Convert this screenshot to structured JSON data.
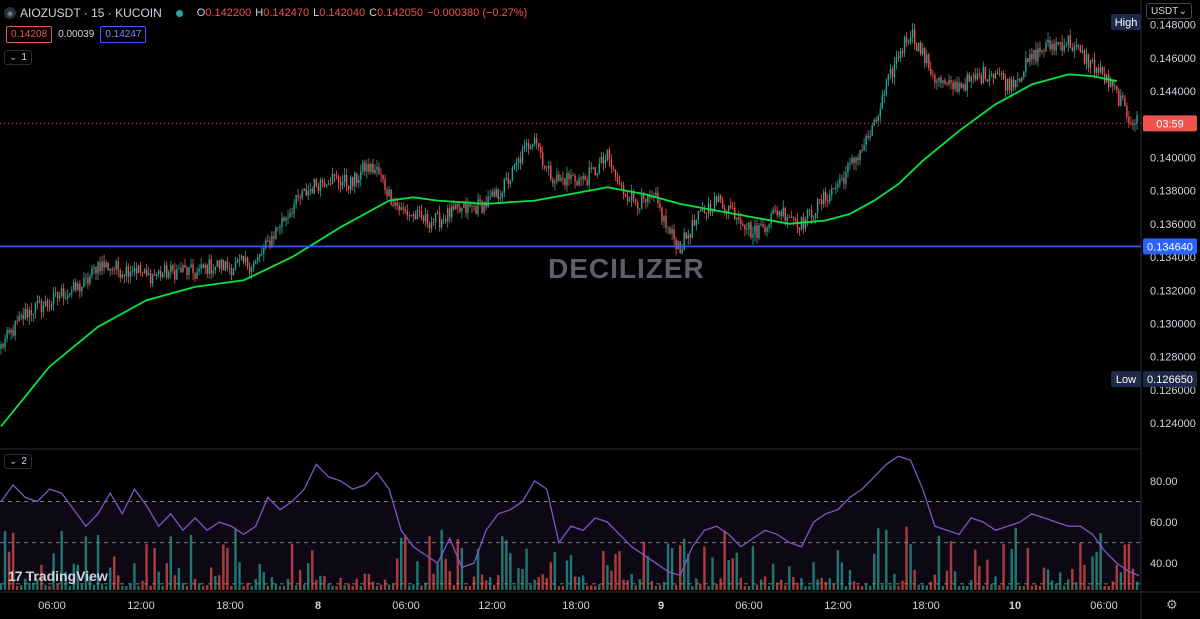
{
  "header": {
    "symbol": "AIOZUSDT · 15 · KUCOIN",
    "o_label": "O",
    "o": "0.142200",
    "h_label": "H",
    "h": "0.142470",
    "l_label": "L",
    "l": "0.142040",
    "c_label": "C",
    "c": "0.142050",
    "change": "−0.000380 (−0.27%)",
    "sell": "0.14208",
    "spread": "0.00039",
    "buy": "0.14247"
  },
  "pane1_label": "1",
  "pane2_label": "2",
  "currency_button": "USDT",
  "watermark": "DECILIZER",
  "logo": "TradingView",
  "colors": {
    "up": "#26a69a",
    "down": "#ef5350",
    "ma": "#00e640",
    "hline": "#2962ff",
    "rsi": "#7e57c2",
    "last_price_line": "#ef5350"
  },
  "chart_data": [
    {
      "type": "candlestick",
      "pane": "price",
      "price_axis": {
        "min": 0.1225,
        "max": 0.149,
        "ticks": [
          "0.124000",
          "0.126000",
          "0.128000",
          "0.130000",
          "0.132000",
          "0.134000",
          "0.136000",
          "0.138000",
          "0.140000",
          "0.142000",
          "0.144000",
          "0.146000",
          "0.148000"
        ]
      },
      "time_axis": {
        "ticks": [
          "06:00",
          "12:00",
          "18:00",
          "8",
          "06:00",
          "12:00",
          "18:00",
          "9",
          "06:00",
          "12:00",
          "18:00",
          "10",
          "06:00"
        ],
        "bold_ticks": [
          "8",
          "9",
          "10"
        ]
      },
      "close_path": [
        [
          0,
          0.1286
        ],
        [
          6,
          0.1296
        ],
        [
          12,
          0.1306
        ],
        [
          18,
          0.131
        ],
        [
          24,
          0.1312
        ],
        [
          30,
          0.1318
        ],
        [
          36,
          0.132
        ],
        [
          42,
          0.1324
        ],
        [
          48,
          0.1336
        ],
        [
          54,
          0.1334
        ],
        [
          60,
          0.1332
        ],
        [
          66,
          0.1334
        ],
        [
          72,
          0.1328
        ],
        [
          78,
          0.133
        ],
        [
          84,
          0.1331
        ],
        [
          90,
          0.1332
        ],
        [
          96,
          0.133
        ],
        [
          102,
          0.1334
        ],
        [
          108,
          0.1335
        ],
        [
          114,
          0.1334
        ],
        [
          120,
          0.1336
        ],
        [
          126,
          0.1336
        ],
        [
          132,
          0.1348
        ],
        [
          138,
          0.136
        ],
        [
          144,
          0.137
        ],
        [
          150,
          0.1378
        ],
        [
          156,
          0.1384
        ],
        [
          162,
          0.1388
        ],
        [
          168,
          0.1386
        ],
        [
          174,
          0.1384
        ],
        [
          180,
          0.1394
        ],
        [
          186,
          0.1392
        ],
        [
          192,
          0.1378
        ],
        [
          198,
          0.1368
        ],
        [
          204,
          0.1365
        ],
        [
          210,
          0.1362
        ],
        [
          216,
          0.1362
        ],
        [
          222,
          0.1366
        ],
        [
          228,
          0.1368
        ],
        [
          234,
          0.137
        ],
        [
          240,
          0.1372
        ],
        [
          246,
          0.1378
        ],
        [
          252,
          0.1388
        ],
        [
          258,
          0.1402
        ],
        [
          264,
          0.1414
        ],
        [
          270,
          0.1392
        ],
        [
          276,
          0.1386
        ],
        [
          282,
          0.1388
        ],
        [
          288,
          0.1386
        ],
        [
          294,
          0.1392
        ],
        [
          300,
          0.14
        ],
        [
          306,
          0.1382
        ],
        [
          312,
          0.1376
        ],
        [
          318,
          0.1372
        ],
        [
          324,
          0.1374
        ],
        [
          330,
          0.1356
        ],
        [
          336,
          0.1346
        ],
        [
          342,
          0.1358
        ],
        [
          348,
          0.1368
        ],
        [
          354,
          0.1374
        ],
        [
          360,
          0.137
        ],
        [
          366,
          0.1364
        ],
        [
          372,
          0.1354
        ],
        [
          378,
          0.136
        ],
        [
          384,
          0.1368
        ],
        [
          390,
          0.1366
        ],
        [
          396,
          0.136
        ],
        [
          402,
          0.1368
        ],
        [
          408,
          0.1376
        ],
        [
          414,
          0.1384
        ],
        [
          420,
          0.1394
        ],
        [
          426,
          0.1406
        ],
        [
          432,
          0.1418
        ],
        [
          438,
          0.1442
        ],
        [
          444,
          0.1462
        ],
        [
          450,
          0.1476
        ],
        [
          456,
          0.1462
        ],
        [
          462,
          0.1448
        ],
        [
          468,
          0.1442
        ],
        [
          474,
          0.1444
        ],
        [
          480,
          0.1446
        ],
        [
          486,
          0.145
        ],
        [
          492,
          0.1452
        ],
        [
          498,
          0.1444
        ],
        [
          504,
          0.145
        ],
        [
          510,
          0.146
        ],
        [
          516,
          0.1466
        ],
        [
          522,
          0.1468
        ],
        [
          528,
          0.147
        ],
        [
          534,
          0.1462
        ],
        [
          540,
          0.1456
        ],
        [
          546,
          0.1448
        ],
        [
          552,
          0.1438
        ],
        [
          558,
          0.1424
        ],
        [
          563,
          0.1421
        ]
      ],
      "session_high": "0.148xxx",
      "session_low": "0.126650",
      "high_label": "High",
      "low_label": "Low",
      "horizontal_line": {
        "price": 0.13464,
        "label": "0.134640"
      },
      "last_price": {
        "price": 0.14205,
        "label": "03:59"
      },
      "moving_average": {
        "name": "MA",
        "path": [
          [
            0,
            0.1238
          ],
          [
            24,
            0.1274
          ],
          [
            48,
            0.1298
          ],
          [
            72,
            0.1314
          ],
          [
            96,
            0.1322
          ],
          [
            120,
            0.1326
          ],
          [
            144,
            0.134
          ],
          [
            168,
            0.1358
          ],
          [
            192,
            0.1374
          ],
          [
            204,
            0.1376
          ],
          [
            216,
            0.1374
          ],
          [
            240,
            0.1372
          ],
          [
            264,
            0.1374
          ],
          [
            282,
            0.1378
          ],
          [
            300,
            0.1382
          ],
          [
            318,
            0.1378
          ],
          [
            336,
            0.1372
          ],
          [
            354,
            0.1368
          ],
          [
            372,
            0.1364
          ],
          [
            390,
            0.136
          ],
          [
            408,
            0.1362
          ],
          [
            420,
            0.1366
          ],
          [
            432,
            0.1374
          ],
          [
            444,
            0.1384
          ],
          [
            456,
            0.1398
          ],
          [
            474,
            0.1416
          ],
          [
            492,
            0.1432
          ],
          [
            510,
            0.1444
          ],
          [
            528,
            0.145
          ],
          [
            540,
            0.1449
          ],
          [
            552,
            0.1446
          ]
        ]
      }
    },
    {
      "type": "line",
      "pane": "oscillator",
      "axis": {
        "min": 27,
        "max": 95,
        "ticks": [
          "40.00",
          "60.00",
          "80.00"
        ]
      },
      "bands": [
        30,
        50,
        70
      ],
      "line_path": [
        [
          0,
          70
        ],
        [
          6,
          78
        ],
        [
          12,
          72
        ],
        [
          18,
          70
        ],
        [
          24,
          76
        ],
        [
          30,
          74
        ],
        [
          36,
          66
        ],
        [
          42,
          58
        ],
        [
          48,
          64
        ],
        [
          54,
          74
        ],
        [
          60,
          64
        ],
        [
          66,
          76
        ],
        [
          72,
          68
        ],
        [
          78,
          58
        ],
        [
          84,
          64
        ],
        [
          90,
          56
        ],
        [
          96,
          62
        ],
        [
          102,
          56
        ],
        [
          108,
          60
        ],
        [
          114,
          58
        ],
        [
          120,
          54
        ],
        [
          126,
          58
        ],
        [
          132,
          72
        ],
        [
          138,
          66
        ],
        [
          144,
          70
        ],
        [
          150,
          76
        ],
        [
          156,
          88
        ],
        [
          162,
          82
        ],
        [
          168,
          80
        ],
        [
          174,
          76
        ],
        [
          180,
          78
        ],
        [
          186,
          84
        ],
        [
          192,
          76
        ],
        [
          198,
          56
        ],
        [
          204,
          48
        ],
        [
          210,
          44
        ],
        [
          216,
          40
        ],
        [
          222,
          52
        ],
        [
          228,
          38
        ],
        [
          234,
          40
        ],
        [
          240,
          56
        ],
        [
          246,
          64
        ],
        [
          252,
          66
        ],
        [
          258,
          70
        ],
        [
          264,
          80
        ],
        [
          270,
          76
        ],
        [
          276,
          50
        ],
        [
          282,
          58
        ],
        [
          288,
          56
        ],
        [
          294,
          62
        ],
        [
          300,
          60
        ],
        [
          306,
          54
        ],
        [
          312,
          48
        ],
        [
          318,
          44
        ],
        [
          324,
          40
        ],
        [
          330,
          36
        ],
        [
          336,
          34
        ],
        [
          342,
          48
        ],
        [
          348,
          56
        ],
        [
          354,
          58
        ],
        [
          360,
          54
        ],
        [
          366,
          48
        ],
        [
          372,
          52
        ],
        [
          378,
          56
        ],
        [
          384,
          54
        ],
        [
          390,
          50
        ],
        [
          396,
          48
        ],
        [
          402,
          60
        ],
        [
          408,
          64
        ],
        [
          414,
          66
        ],
        [
          420,
          72
        ],
        [
          426,
          76
        ],
        [
          432,
          82
        ],
        [
          438,
          88
        ],
        [
          444,
          92
        ],
        [
          450,
          90
        ],
        [
          456,
          76
        ],
        [
          462,
          58
        ],
        [
          468,
          56
        ],
        [
          474,
          54
        ],
        [
          480,
          62
        ],
        [
          486,
          60
        ],
        [
          492,
          56
        ],
        [
          498,
          58
        ],
        [
          504,
          60
        ],
        [
          510,
          64
        ],
        [
          516,
          62
        ],
        [
          522,
          60
        ],
        [
          528,
          58
        ],
        [
          534,
          58
        ],
        [
          540,
          54
        ],
        [
          546,
          46
        ],
        [
          552,
          40
        ],
        [
          558,
          36
        ],
        [
          563,
          34
        ]
      ]
    }
  ]
}
